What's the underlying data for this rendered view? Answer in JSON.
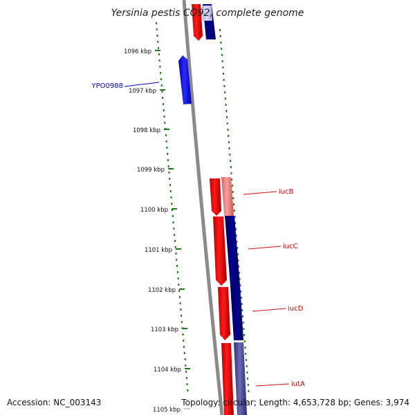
{
  "title": "Yersinia pestis CO92, complete genome",
  "footer": {
    "accession": "Accession: NC_003143",
    "topology": "Topology: circular; Length: 4,653,728 bp; Genes: 3,974"
  },
  "ticks": [
    {
      "label": "1096 kbp"
    },
    {
      "label": "1097 kbp"
    },
    {
      "label": "1098 kbp"
    },
    {
      "label": "1099 kbp"
    },
    {
      "label": "1100 kbp"
    },
    {
      "label": "1101 kbp"
    },
    {
      "label": "1102 kbp"
    },
    {
      "label": "1103 kbp"
    },
    {
      "label": "1104 kbp"
    },
    {
      "label": "1105 kbp"
    }
  ],
  "gene_labels": [
    {
      "name": "YPO0988",
      "color": "#0000cc"
    },
    {
      "name": "iucB",
      "color": "#cc0000"
    },
    {
      "name": "iucC",
      "color": "#cc0000"
    },
    {
      "name": "iucD",
      "color": "#cc0000"
    },
    {
      "name": "iutA",
      "color": "#cc0000"
    }
  ],
  "colors": {
    "backbone": "#8a8a8a",
    "gc_skew": "#1a7a1a",
    "forward_gene": "#ff0000",
    "reverse_gene": "#0000ff",
    "hit_dark_blue": "#000080",
    "hit_light_red": "#f08080",
    "hit_light_blue": "#c8c8ee",
    "hit_purple": "#4a4a9a"
  }
}
